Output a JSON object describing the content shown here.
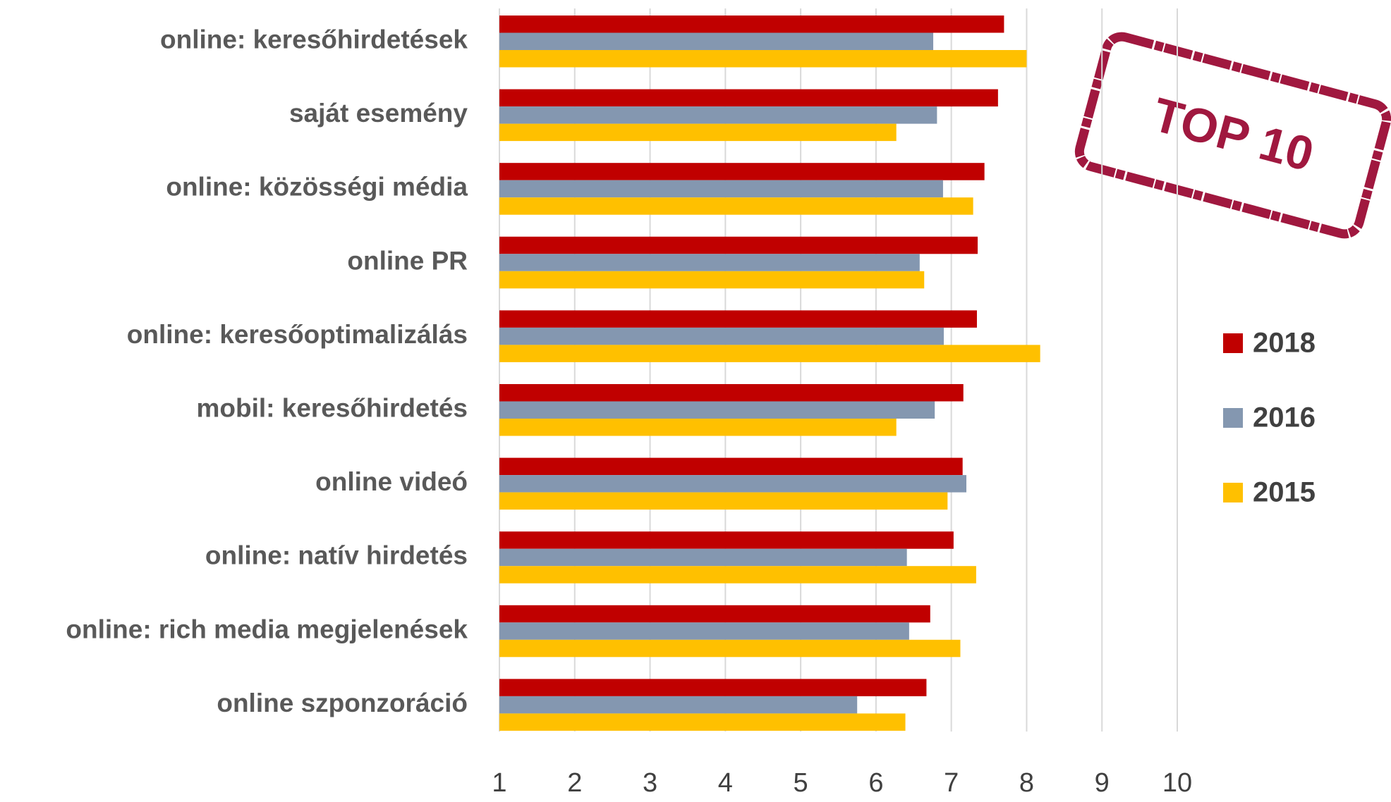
{
  "chart_data": {
    "type": "bar",
    "orientation": "horizontal",
    "annotation": "TOP 10",
    "categories": [
      "online: keresőhirdetések",
      "saját esemény",
      "online: közösségi média",
      "online PR",
      "online: keresőoptimalizálás",
      "mobil: keresőhirdetés",
      "online videó",
      "online: natív hirdetés",
      "online: rich media megjelenések",
      "online szponzoráció"
    ],
    "series": [
      {
        "name": "2018",
        "color": "#c00000",
        "values": [
          7.7,
          7.62,
          7.44,
          7.35,
          7.34,
          7.16,
          7.15,
          7.03,
          6.72,
          6.67
        ]
      },
      {
        "name": "2016",
        "color": "#8497b0",
        "values": [
          6.76,
          6.81,
          6.89,
          6.58,
          6.9,
          6.78,
          7.2,
          6.41,
          6.44,
          5.75
        ]
      },
      {
        "name": "2015",
        "color": "#ffc000",
        "values": [
          8.0,
          6.27,
          7.29,
          6.64,
          8.18,
          6.27,
          6.95,
          7.33,
          7.12,
          6.39
        ]
      }
    ],
    "xlim": [
      1,
      10
    ],
    "xticks": [
      1,
      2,
      3,
      4,
      5,
      6,
      7,
      8,
      9,
      10
    ],
    "grid": true,
    "legend": "right"
  }
}
